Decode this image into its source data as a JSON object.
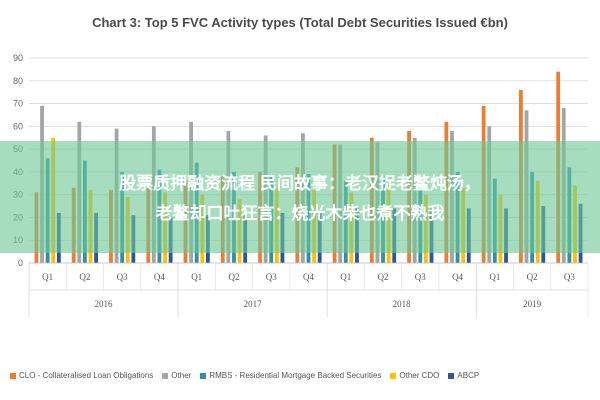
{
  "chart_data": {
    "type": "bar",
    "title": "Chart 3: Top 5 FVC Activity types (Total Debt Securities Issued €bn)",
    "ylim": [
      0,
      90
    ],
    "yticks": [
      0,
      10,
      20,
      30,
      40,
      50,
      60,
      70,
      80,
      90
    ],
    "grid": true,
    "legend_position": "bottom",
    "categories": [
      "Q1",
      "Q2",
      "Q3",
      "Q4",
      "Q1",
      "Q2",
      "Q3",
      "Q4",
      "Q1",
      "Q2",
      "Q3",
      "Q4",
      "Q1",
      "Q2",
      "Q3"
    ],
    "years": [
      {
        "label": "2016",
        "count": 4
      },
      {
        "label": "2017",
        "count": 4
      },
      {
        "label": "2018",
        "count": 4
      },
      {
        "label": "2019",
        "count": 3
      }
    ],
    "series": [
      {
        "name": "CLO - Collateralised Loan Obligations",
        "color": "#ed7d31",
        "values": [
          31,
          33,
          32,
          34,
          36,
          38,
          40,
          42,
          52,
          55,
          58,
          62,
          69,
          76,
          84
        ]
      },
      {
        "name": "Other",
        "color": "#a5a5a5",
        "values": [
          69,
          62,
          59,
          60,
          62,
          58,
          56,
          57,
          52,
          53,
          55,
          58,
          60,
          67,
          68
        ]
      },
      {
        "name": "RMBS - Residential Mortgage Backed Securities",
        "color": "#2e8fa8",
        "values": [
          46,
          45,
          40,
          41,
          44,
          40,
          38,
          39,
          36,
          38,
          35,
          40,
          37,
          40,
          42
        ]
      },
      {
        "name": "Other CDO",
        "color": "#ffc000",
        "values": [
          55,
          32,
          29,
          31,
          30,
          28,
          33,
          32,
          31,
          34,
          30,
          33,
          30,
          36,
          34
        ]
      },
      {
        "name": "ABCP",
        "color": "#2f5597",
        "values": [
          22,
          22,
          21,
          20,
          21,
          21,
          22,
          22,
          24,
          24,
          24,
          24,
          24,
          25,
          26
        ]
      }
    ]
  },
  "overlay": {
    "line1": "股票质押融资流程 民间故事：老汉捉老鳖炖汤，",
    "line2": "老鳖却口吐狂言：烧光木柴也煮不熟我"
  }
}
